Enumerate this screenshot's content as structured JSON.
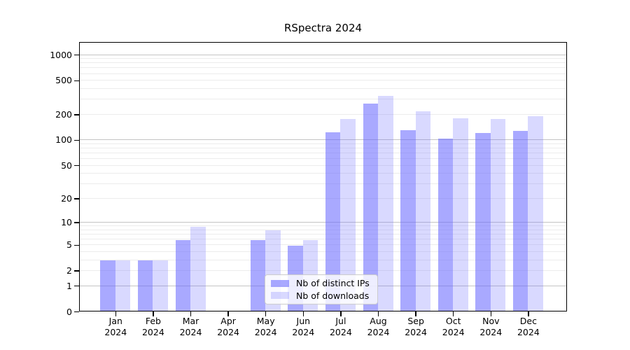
{
  "title": "RSpectra 2024",
  "chart_data": {
    "type": "bar",
    "title": "RSpectra 2024",
    "categories": [
      "Jan 2024",
      "Feb 2024",
      "Mar 2024",
      "Apr 2024",
      "May 2024",
      "Jun 2024",
      "Jul 2024",
      "Aug 2024",
      "Sep 2024",
      "Oct 2024",
      "Nov 2024",
      "Dec 2024"
    ],
    "series": [
      {
        "name": "Nb of distinct IPs",
        "color": "rgba(102,102,255,0.56)",
        "values": [
          3,
          3,
          6,
          0,
          6,
          5,
          126,
          270,
          133,
          106,
          122,
          130
        ]
      },
      {
        "name": "Nb of downloads",
        "color": "rgba(102,102,255,0.25)",
        "values": [
          3,
          3,
          9,
          0,
          8,
          6,
          180,
          335,
          220,
          182,
          180,
          192
        ]
      }
    ],
    "y_axis": {
      "scale": "log1p",
      "ticks": [
        0,
        1,
        2,
        5,
        10,
        20,
        50,
        100,
        200,
        500,
        1000
      ],
      "major_gridlines": [
        1,
        10,
        100,
        1000
      ]
    },
    "x_axis_label_year_rows": true,
    "legend_position": "inside-bottom-center",
    "grid": true,
    "colors": {
      "bar_base": "#6666ff",
      "major_grid": "#c4c4c4",
      "minor_grid": "#ececec",
      "spine": "#000000",
      "background": "#ffffff"
    }
  }
}
